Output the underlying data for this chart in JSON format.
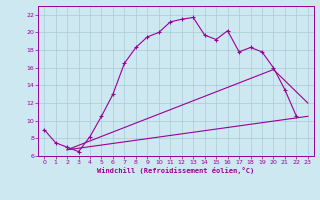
{
  "xlabel": "Windchill (Refroidissement éolien,°C)",
  "background_color": "#cde8f0",
  "grid_color": "#a8ccd8",
  "line_color": "#990099",
  "ylim": [
    6,
    23
  ],
  "xlim": [
    -0.5,
    23.5
  ],
  "yticks": [
    6,
    8,
    10,
    12,
    14,
    16,
    18,
    20,
    22
  ],
  "xticks": [
    0,
    1,
    2,
    3,
    4,
    5,
    6,
    7,
    8,
    9,
    10,
    11,
    12,
    13,
    14,
    15,
    16,
    17,
    18,
    19,
    20,
    21,
    22,
    23
  ],
  "line1_x": [
    0,
    1,
    2,
    3,
    4,
    5,
    6,
    7,
    8,
    9,
    10,
    11,
    12,
    13,
    14,
    15,
    16,
    17,
    18,
    19,
    20,
    21,
    22
  ],
  "line1_y": [
    9.0,
    7.5,
    7.0,
    6.5,
    8.2,
    10.5,
    13.0,
    16.5,
    18.3,
    19.5,
    20.0,
    21.2,
    21.5,
    21.7,
    19.7,
    19.2,
    20.2,
    17.8,
    18.3,
    17.8,
    16.0,
    13.5,
    10.5
  ],
  "line2_x": [
    2,
    23
  ],
  "line2_y": [
    6.7,
    10.5
  ],
  "line3_x": [
    2,
    20,
    23
  ],
  "line3_y": [
    6.7,
    15.8,
    12.0
  ]
}
